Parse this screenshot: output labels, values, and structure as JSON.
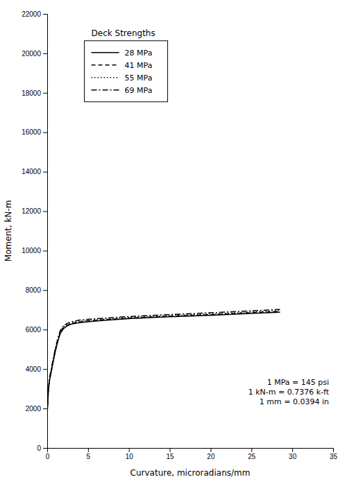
{
  "chart_data": {
    "type": "line",
    "title": "Deck Strengths",
    "xlabel": "Curvature, microradians/mm",
    "ylabel": "Moment, kN-m",
    "annotations": [
      "1 MPa = 145 psi",
      "1 kN-m = 0.7376 k-ft",
      "1 mm = 0.0394 in"
    ],
    "xlim": [
      0,
      35
    ],
    "ylim": [
      0,
      22000
    ],
    "xticks": [
      0,
      5,
      10,
      15,
      20,
      25,
      30,
      35
    ],
    "yticks": [
      0,
      2000,
      4000,
      6000,
      8000,
      10000,
      12000,
      14000,
      16000,
      18000,
      20000,
      22000
    ],
    "legend": "upper left",
    "x": [
      0,
      0.05,
      0.1,
      0.15,
      0.2,
      0.3,
      0.5,
      0.7,
      1.0,
      1.3,
      1.6,
      2.0,
      2.5,
      3.0,
      3.5,
      4.0,
      5.0,
      7.0,
      10.0,
      15.0,
      20.0,
      25.0,
      28.5
    ],
    "series": [
      {
        "name": "28 MPa",
        "color": "#000000",
        "line_style": "solid",
        "values": [
          1750,
          2100,
          2500,
          2900,
          3100,
          3450,
          3850,
          4300,
          4900,
          5400,
          5800,
          6050,
          6200,
          6280,
          6320,
          6350,
          6400,
          6470,
          6550,
          6650,
          6720,
          6820,
          6880
        ]
      },
      {
        "name": "41 MPa",
        "color": "#000000",
        "line_style": "dashed",
        "values": [
          1800,
          2150,
          2550,
          2950,
          3150,
          3500,
          3900,
          4350,
          4950,
          5450,
          5850,
          6100,
          6230,
          6310,
          6360,
          6390,
          6440,
          6500,
          6580,
          6680,
          6760,
          6860,
          6920
        ]
      },
      {
        "name": "55 MPa",
        "color": "#000000",
        "line_style": "dotted",
        "values": [
          1850,
          2200,
          2600,
          3000,
          3200,
          3550,
          3950,
          4400,
          5000,
          5500,
          5900,
          6150,
          6270,
          6350,
          6390,
          6420,
          6470,
          6530,
          6610,
          6710,
          6790,
          6890,
          6960
        ]
      },
      {
        "name": "69 MPa",
        "color": "#000000",
        "line_style": "dashdot",
        "values": [
          1900,
          2250,
          2650,
          3050,
          3250,
          3600,
          4000,
          4450,
          5050,
          5550,
          5950,
          6200,
          6320,
          6400,
          6440,
          6480,
          6520,
          6580,
          6660,
          6760,
          6850,
          6950,
          7020
        ]
      }
    ]
  }
}
